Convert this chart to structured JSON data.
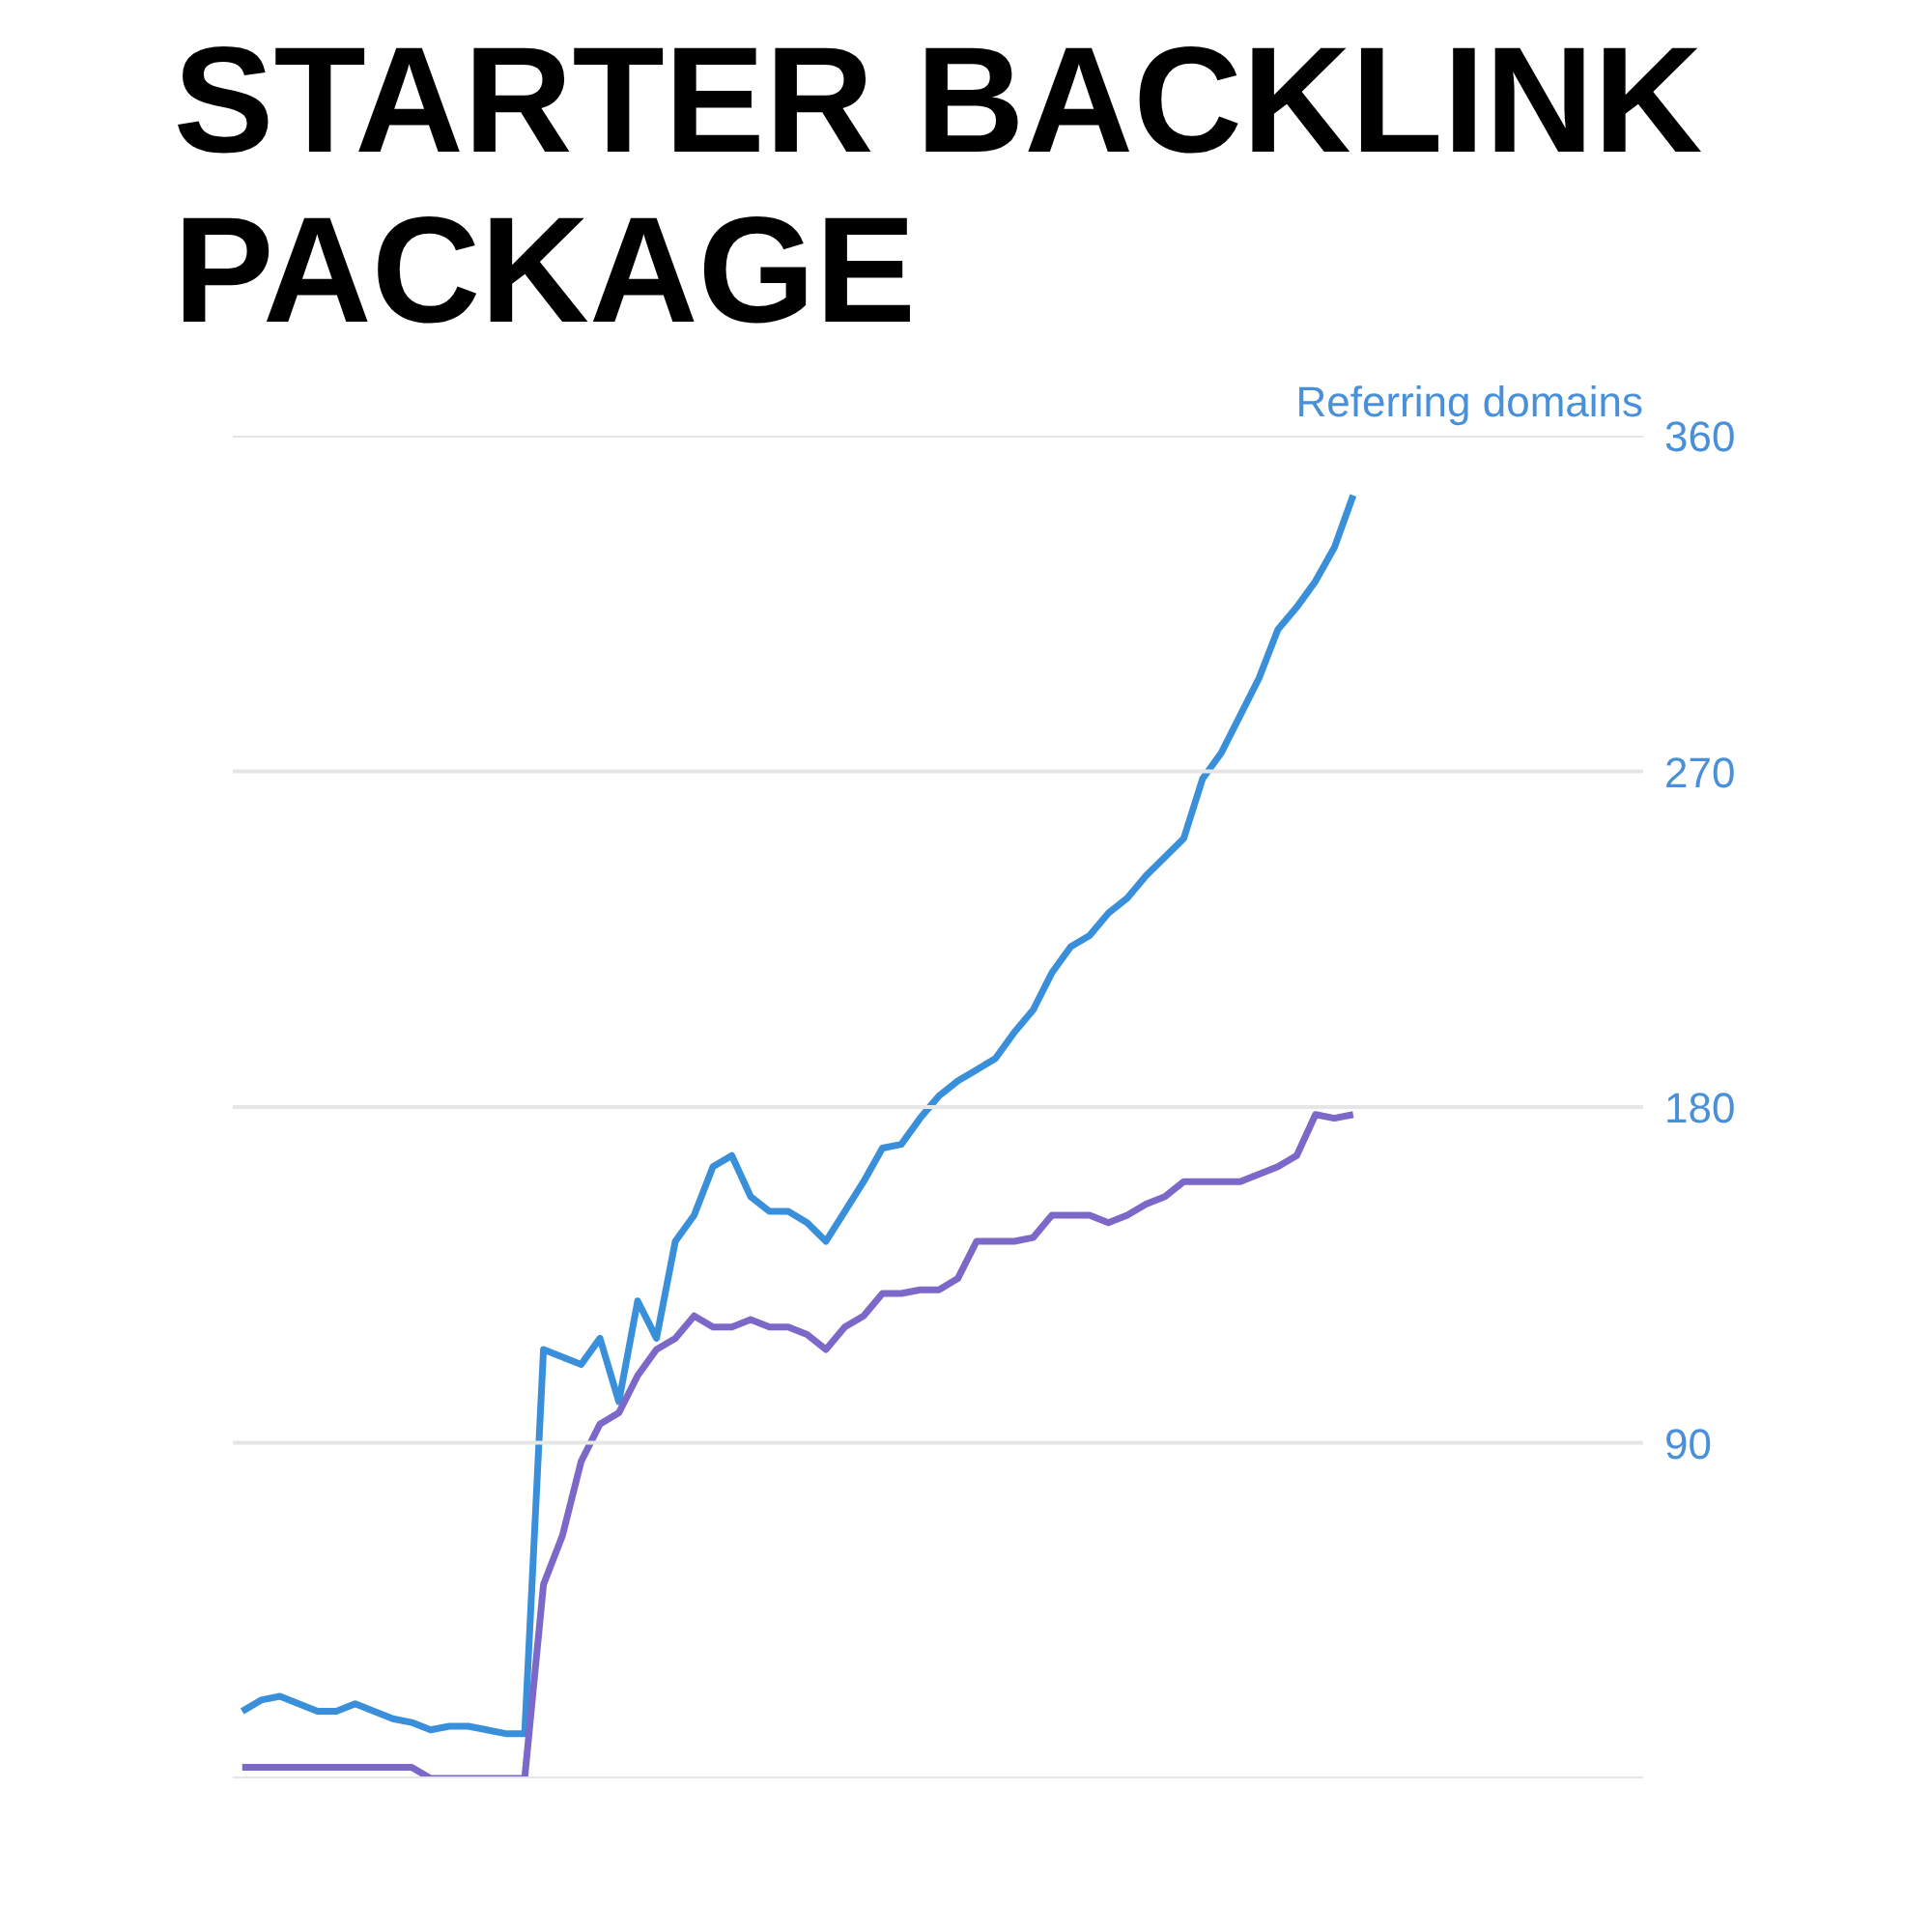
{
  "chart_data": {
    "type": "line",
    "title": "STARTER BACKLINK PACKAGE",
    "ylabel": "Referring domains",
    "categories": [
      null,
      null,
      null,
      null,
      null,
      null,
      null,
      null,
      null,
      null,
      null,
      null,
      null,
      null,
      null,
      null,
      null,
      null,
      null,
      null,
      null,
      null,
      null,
      null,
      null,
      null,
      null,
      null,
      null,
      null,
      null,
      null,
      null,
      null,
      null,
      null,
      null,
      null,
      null,
      null,
      null,
      null,
      null,
      null,
      null,
      null,
      null,
      null,
      null,
      null,
      null,
      null,
      null,
      null,
      null,
      null,
      null,
      null,
      null,
      null
    ],
    "series": [
      {
        "color": "#3a8fdb",
        "values": [
          18,
          21,
          22,
          20,
          18,
          18,
          20,
          18,
          16,
          15,
          13,
          14,
          14,
          13,
          12,
          12,
          115,
          113,
          111,
          118,
          101,
          128,
          118,
          144,
          151,
          164,
          167,
          156,
          152,
          152,
          149,
          144,
          152,
          160,
          169,
          170,
          177,
          183,
          187,
          190,
          193,
          200,
          206,
          216,
          223,
          226,
          232,
          236,
          242,
          247,
          252,
          268,
          275,
          285,
          295,
          308,
          314,
          321,
          330,
          344
        ]
      },
      {
        "color": "#7b68c9",
        "values": [
          3,
          3,
          3,
          3,
          3,
          3,
          3,
          3,
          3,
          3,
          0,
          0,
          0,
          0,
          0,
          0,
          52,
          65,
          85,
          95,
          98,
          108,
          115,
          118,
          124,
          121,
          121,
          123,
          121,
          121,
          119,
          115,
          121,
          124,
          130,
          130,
          131,
          131,
          134,
          144,
          144,
          144,
          145,
          151,
          151,
          151,
          149,
          151,
          154,
          156,
          160,
          160,
          160,
          160,
          162,
          164,
          167,
          178,
          177,
          178
        ]
      }
    ],
    "ylim": [
      0,
      360
    ],
    "yticks": [
      {
        "value": 0,
        "label": null
      },
      90,
      180,
      270,
      360
    ],
    "grid": "y",
    "tick_labels": "y",
    "line_style": "solid",
    "marker": "none"
  }
}
